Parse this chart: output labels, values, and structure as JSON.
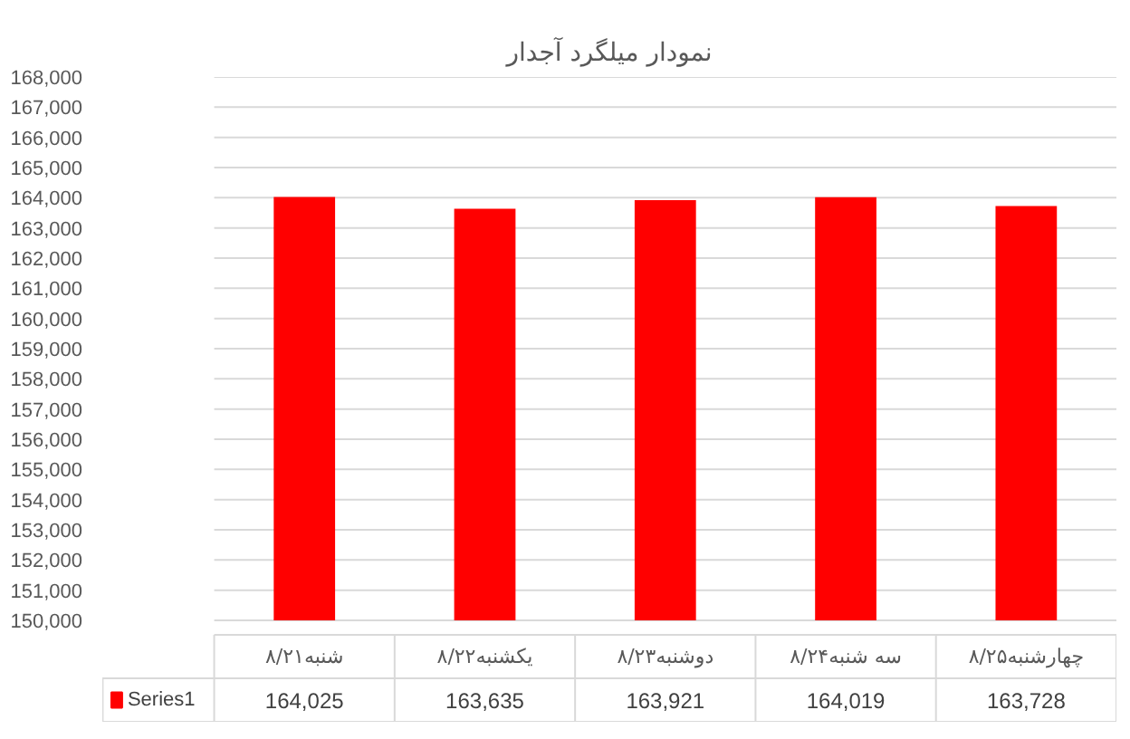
{
  "chart_data": {
    "type": "bar",
    "title": "نمودار میلگرد آجدار",
    "categories": [
      "شنبه۸/۲۱",
      "یکشنبه۸/۲۲",
      "دوشنبه۸/۲۳",
      "سه شنبه۸/۲۴",
      "چهارشنبه۸/۲۵"
    ],
    "series": [
      {
        "name": "Series1",
        "color": "#ff0000",
        "values": [
          164025,
          163635,
          163921,
          164019,
          163728
        ],
        "value_labels": [
          "164,025",
          "163,635",
          "163,921",
          "164,019",
          "163,728"
        ]
      }
    ],
    "ylim": [
      150000,
      168000
    ],
    "yticks": [
      {
        "value": 150000,
        "label": "150,000"
      },
      {
        "value": 151000,
        "label": "151,000"
      },
      {
        "value": 152000,
        "label": "152,000"
      },
      {
        "value": 153000,
        "label": "153,000"
      },
      {
        "value": 154000,
        "label": "154,000"
      },
      {
        "value": 155000,
        "label": "155,000"
      },
      {
        "value": 156000,
        "label": "156,000"
      },
      {
        "value": 157000,
        "label": "157,000"
      },
      {
        "value": 158000,
        "label": "158,000"
      },
      {
        "value": 159000,
        "label": "159,000"
      },
      {
        "value": 160000,
        "label": "160,000"
      },
      {
        "value": 161000,
        "label": "161,000"
      },
      {
        "value": 162000,
        "label": "162,000"
      },
      {
        "value": 163000,
        "label": "163,000"
      },
      {
        "value": 164000,
        "label": "164,000"
      },
      {
        "value": 165000,
        "label": "165,000"
      },
      {
        "value": 166000,
        "label": "166,000"
      },
      {
        "value": 167000,
        "label": "167,000"
      },
      {
        "value": 168000,
        "label": "168,000"
      }
    ],
    "grid": "y",
    "legend": "bottom"
  }
}
